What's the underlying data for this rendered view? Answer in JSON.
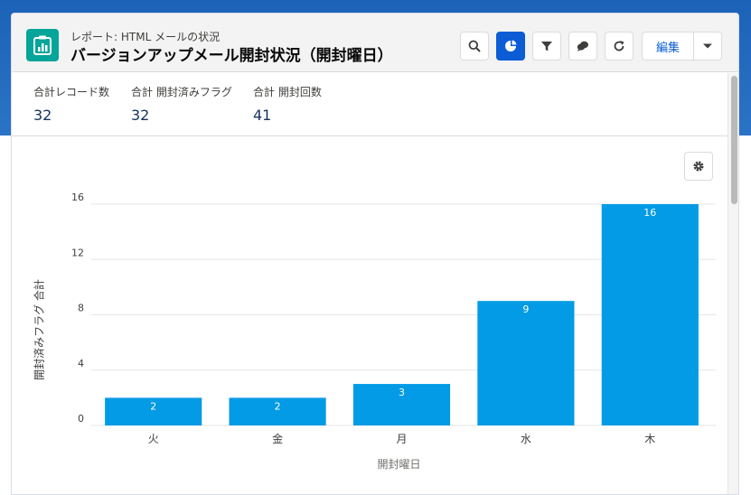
{
  "window": {
    "report_subtitle": "レポート: HTML メールの状況",
    "report_title": "バージョンアップメール開封状況（開封曜日）"
  },
  "toolbar": {
    "icons": [
      "search-icon",
      "chart-icon",
      "filter-icon",
      "comments-icon",
      "refresh-icon"
    ],
    "edit_label": "編集"
  },
  "summary": {
    "metrics": [
      {
        "label": "合計レコード数",
        "value": "32"
      },
      {
        "label": "合計 開封済みフラグ",
        "value": "32"
      },
      {
        "label": "合計 開封回数",
        "value": "41"
      }
    ]
  },
  "chart_data": {
    "type": "bar",
    "categories": [
      "火",
      "金",
      "月",
      "水",
      "木"
    ],
    "values": [
      2,
      2,
      3,
      9,
      16
    ],
    "xlabel": "開封曜日",
    "ylabel": "開封済みフラグ 合計",
    "yticks": [
      0,
      4,
      8,
      12,
      16
    ],
    "ylim": [
      0,
      16
    ],
    "bar_color": "#039be5",
    "grid": true
  }
}
